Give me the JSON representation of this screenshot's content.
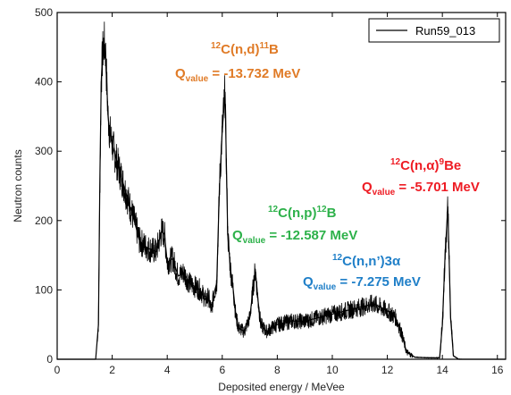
{
  "chart_data": {
    "type": "line",
    "title": "",
    "xlabel": "Deposited energy / MeVee",
    "ylabel": "Neutron counts",
    "xlim": [
      0,
      16.3
    ],
    "ylim": [
      0,
      500
    ],
    "x_ticks": [
      "0",
      "2",
      "4",
      "6",
      "8",
      "10",
      "12",
      "14",
      "16"
    ],
    "y_ticks": [
      "0",
      "100",
      "200",
      "300",
      "400",
      "500"
    ],
    "grid": false,
    "legend_position": "top-right",
    "series": [
      {
        "name": "Run59_013",
        "color": "#000000",
        "x": [
          0,
          1.4,
          1.5,
          1.55,
          1.6,
          1.65,
          1.7,
          1.75,
          1.8,
          1.85,
          1.9,
          2.0,
          2.2,
          2.5,
          2.8,
          3.0,
          3.3,
          3.6,
          3.8,
          3.9,
          4.0,
          4.2,
          4.4,
          4.6,
          4.8,
          5.0,
          5.2,
          5.4,
          5.5,
          5.6,
          5.7,
          5.8,
          5.9,
          6.0,
          6.1,
          6.2,
          6.3,
          6.4,
          6.5,
          6.6,
          6.8,
          7.0,
          7.1,
          7.2,
          7.3,
          7.4,
          7.6,
          7.8,
          8.0,
          8.5,
          9.0,
          9.5,
          10.0,
          10.5,
          11.0,
          11.5,
          12.0,
          12.3,
          12.5,
          12.7,
          13.0,
          13.5,
          13.9,
          14.0,
          14.1,
          14.2,
          14.3,
          14.4,
          14.6,
          16.3
        ],
        "y": [
          0,
          0,
          50,
          250,
          400,
          440,
          455,
          450,
          400,
          350,
          330,
          310,
          280,
          240,
          200,
          170,
          160,
          155,
          185,
          180,
          140,
          145,
          120,
          125,
          110,
          105,
          100,
          85,
          90,
          70,
          95,
          110,
          250,
          330,
          385,
          180,
          130,
          100,
          60,
          45,
          40,
          60,
          95,
          130,
          85,
          50,
          40,
          45,
          50,
          55,
          55,
          60,
          65,
          70,
          75,
          80,
          70,
          60,
          40,
          10,
          3,
          2,
          2,
          50,
          150,
          220,
          60,
          5,
          0,
          0
        ]
      }
    ],
    "annotations": [
      {
        "reaction": "C(n,d)",
        "pre": "12",
        "post": "11",
        "product": "B",
        "q_label": "Q",
        "q_sub": "value",
        "q_value": " = -13.732 MeV",
        "color": "#e07b27"
      },
      {
        "reaction": "C(n,p)",
        "pre": "12",
        "post": "12",
        "product": "B",
        "q_label": "Q",
        "q_sub": "value",
        "q_value": " = -12.587 MeV",
        "color": "#2db14a"
      },
      {
        "reaction": "C(n,n’)3α",
        "pre": "12",
        "post": "",
        "product": "",
        "q_label": "Q",
        "q_sub": "value",
        "q_value": " = -7.275 MeV",
        "color": "#1f7fc8"
      },
      {
        "reaction": "C(n,α)",
        "pre": "12",
        "post": "9",
        "product": "Be",
        "q_label": "Q",
        "q_sub": "value",
        "q_value": " = -5.701 MeV",
        "color": "#ee1c24"
      }
    ]
  }
}
